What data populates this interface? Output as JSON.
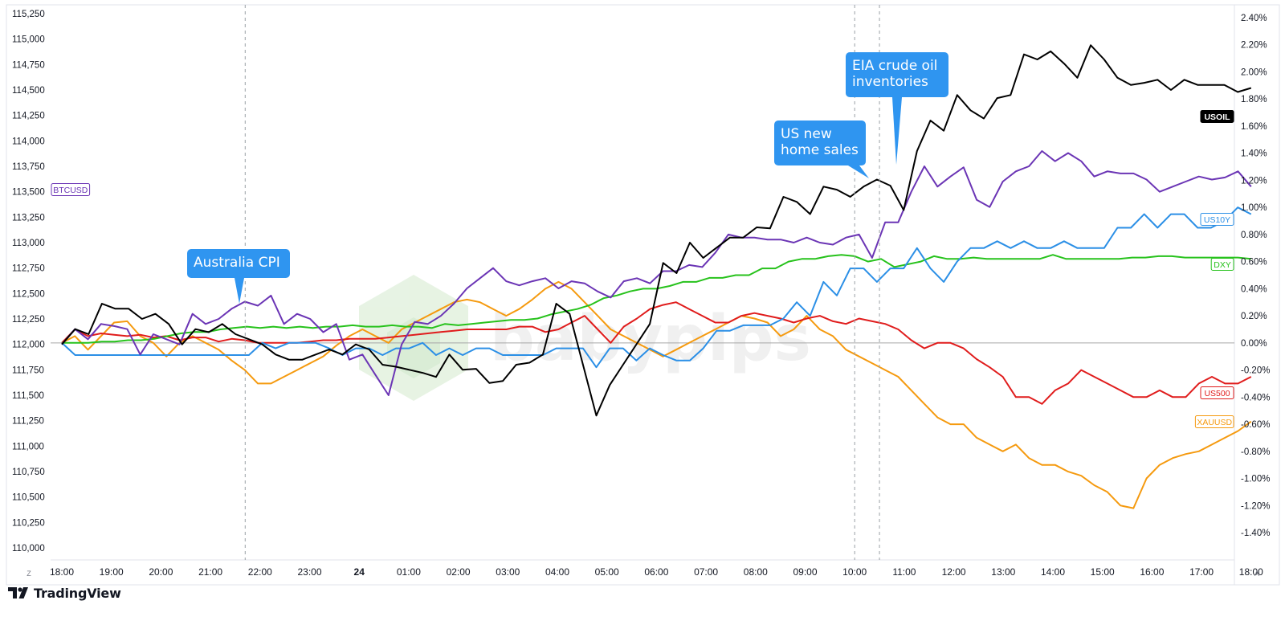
{
  "footer": {
    "brand": "TradingView"
  },
  "watermark": {
    "text": "babypips"
  },
  "corner_labels": {
    "left": "Z",
    "right": "A"
  },
  "chart_data": {
    "type": "line",
    "x_tick_labels": [
      "18:00",
      "19:00",
      "20:00",
      "21:00",
      "22:00",
      "23:00",
      "24",
      "01:00",
      "02:00",
      "03:00",
      "04:00",
      "05:00",
      "06:00",
      "07:00",
      "08:00",
      "09:00",
      "10:00",
      "11:00",
      "12:00",
      "13:00",
      "14:00",
      "15:00",
      "16:00",
      "17:00",
      "18:00"
    ],
    "left_axis": {
      "ylim": [
        110000,
        115250
      ],
      "tick_labels": [
        "115,250",
        "115,000",
        "114,750",
        "114,500",
        "114,250",
        "114,000",
        "113,750",
        "113,500",
        "113,250",
        "113,000",
        "112,750",
        "112,500",
        "112,250",
        "112,000",
        "111,750",
        "111,500",
        "111,250",
        "111,000",
        "110,750",
        "110,500",
        "110,250",
        "110,000"
      ]
    },
    "right_axis": {
      "ylim_percent": [
        -1.5,
        2.4
      ],
      "tick_labels": [
        "2.40%",
        "2.20%",
        "2.00%",
        "1.80%",
        "1.60%",
        "1.40%",
        "1.20%",
        "1.00%",
        "0.80%",
        "0.60%",
        "0.40%",
        "0.20%",
        "0.00%",
        "-0.20%",
        "-0.40%",
        "-0.60%",
        "-0.80%",
        "-1.00%",
        "-1.20%",
        "-1.40%"
      ]
    },
    "zero_line_percent": 0,
    "events": [
      {
        "label_lines": [
          "Australia CPI"
        ],
        "x_hours": 3.7
      },
      {
        "label_lines": [
          "US new",
          "home sales"
        ],
        "x_hours": 16.0
      },
      {
        "label_lines": [
          "EIA crude oil",
          "inventories"
        ],
        "x_hours": 16.5
      }
    ],
    "series": [
      {
        "name": "USOIL",
        "axis": "left",
        "color": "#000000",
        "tag_bg": "#000000",
        "tag_text": "#ffffff",
        "values": [
          112000,
          112150,
          112100,
          112400,
          112350,
          112350,
          112250,
          112300,
          112200,
          112000,
          112150,
          112120,
          112200,
          112100,
          112050,
          112000,
          111900,
          111850,
          111850,
          111900,
          111950,
          111900,
          112000,
          111950,
          111800,
          111780,
          111750,
          111720,
          111680,
          111900,
          111750,
          111760,
          111620,
          111640,
          111800,
          111820,
          111900,
          112400,
          112300,
          111800,
          111300,
          111600,
          111800,
          112000,
          112200,
          112800,
          112700,
          113000,
          112850,
          112950,
          113050,
          113050,
          113150,
          113140,
          113450,
          113400,
          113280,
          113550,
          113520,
          113450,
          113550,
          113620,
          113560,
          113320,
          113900,
          114200,
          114100,
          114450,
          114300,
          114220,
          114420,
          114450,
          114850,
          114800,
          114880,
          114760,
          114620,
          114940,
          114800,
          114620,
          114550,
          114570,
          114600,
          114500,
          114600,
          114550,
          114550,
          114550,
          114480,
          114520
        ]
      },
      {
        "name": "BTCUSD",
        "axis": "left",
        "color": "#6b35b5",
        "tag_bg": "#ffffff",
        "tag_text": "#6b35b5",
        "values": [
          112000,
          112150,
          112050,
          112200,
          112180,
          112150,
          111900,
          112100,
          112050,
          112000,
          112300,
          112200,
          112250,
          112350,
          112420,
          112380,
          112480,
          112200,
          112300,
          112250,
          112120,
          112200,
          111850,
          111900,
          111700,
          111500,
          112000,
          112220,
          112200,
          112280,
          112400,
          112550,
          112650,
          112750,
          112620,
          112580,
          112620,
          112650,
          112550,
          112620,
          112600,
          112520,
          112460,
          112620,
          112650,
          112600,
          112720,
          112720,
          112780,
          112760,
          112900,
          113080,
          113050,
          113050,
          113030,
          113030,
          113000,
          113050,
          113000,
          112980,
          113050,
          113080,
          112850,
          113200,
          113200,
          113500,
          113750,
          113550,
          113650,
          113740,
          113420,
          113350,
          113600,
          113700,
          113750,
          113900,
          113800,
          113880,
          113800,
          113650,
          113700,
          113680,
          113680,
          113620,
          113500,
          113550,
          113600,
          113650,
          113620,
          113640,
          113700,
          113550
        ]
      },
      {
        "name": "US10Y",
        "axis": "right",
        "color": "#2b8fe6",
        "tag_bg": "#ffffff",
        "tag_text": "#2b8fe6",
        "values": [
          0.0,
          -0.09,
          -0.09,
          -0.09,
          -0.09,
          -0.09,
          -0.09,
          -0.09,
          -0.09,
          -0.09,
          -0.09,
          -0.09,
          -0.09,
          -0.09,
          -0.09,
          0.0,
          -0.04,
          0.0,
          0.0,
          0.0,
          -0.04,
          -0.09,
          -0.04,
          -0.04,
          -0.09,
          -0.04,
          -0.04,
          0.0,
          -0.09,
          -0.04,
          -0.09,
          -0.04,
          -0.04,
          -0.09,
          -0.09,
          -0.09,
          -0.09,
          -0.04,
          -0.04,
          -0.04,
          -0.18,
          -0.04,
          -0.04,
          -0.13,
          -0.04,
          -0.09,
          -0.13,
          -0.13,
          -0.04,
          0.09,
          0.09,
          0.13,
          0.13,
          0.13,
          0.18,
          0.3,
          0.2,
          0.45,
          0.35,
          0.55,
          0.55,
          0.45,
          0.55,
          0.55,
          0.7,
          0.55,
          0.45,
          0.6,
          0.7,
          0.7,
          0.75,
          0.7,
          0.75,
          0.7,
          0.7,
          0.75,
          0.7,
          0.7,
          0.7,
          0.85,
          0.85,
          0.95,
          0.85,
          0.95,
          0.95,
          0.85,
          0.85,
          0.9,
          1.0,
          0.95
        ]
      },
      {
        "name": "DXY",
        "axis": "right",
        "color": "#27c21c",
        "tag_bg": "#ffffff",
        "tag_text": "#27c21c",
        "values": [
          0.0,
          0.0,
          0.0,
          0.01,
          0.01,
          0.02,
          0.02,
          0.03,
          0.05,
          0.07,
          0.08,
          0.08,
          0.1,
          0.11,
          0.12,
          0.11,
          0.12,
          0.11,
          0.12,
          0.11,
          0.12,
          0.12,
          0.13,
          0.12,
          0.12,
          0.13,
          0.12,
          0.12,
          0.11,
          0.14,
          0.13,
          0.14,
          0.15,
          0.16,
          0.17,
          0.17,
          0.18,
          0.21,
          0.23,
          0.25,
          0.28,
          0.33,
          0.35,
          0.38,
          0.4,
          0.4,
          0.42,
          0.45,
          0.45,
          0.48,
          0.48,
          0.5,
          0.5,
          0.55,
          0.55,
          0.6,
          0.62,
          0.62,
          0.64,
          0.65,
          0.64,
          0.6,
          0.62,
          0.56,
          0.58,
          0.6,
          0.64,
          0.62,
          0.62,
          0.63,
          0.62,
          0.62,
          0.62,
          0.62,
          0.62,
          0.65,
          0.62,
          0.62,
          0.62,
          0.62,
          0.62,
          0.63,
          0.63,
          0.64,
          0.64,
          0.63,
          0.63,
          0.63,
          0.63,
          0.63,
          0.62
        ]
      },
      {
        "name": "US500",
        "axis": "right",
        "color": "#e01c1c",
        "tag_bg": "#ffffff",
        "tag_text": "#e01c1c",
        "values": [
          0.0,
          0.1,
          0.05,
          0.07,
          0.06,
          0.05,
          0.06,
          0.04,
          0.05,
          0.02,
          0.04,
          0.04,
          0.01,
          0.03,
          0.02,
          0.0,
          0.0,
          0.0,
          0.0,
          0.01,
          0.02,
          0.02,
          0.03,
          0.03,
          0.03,
          0.04,
          0.05,
          0.06,
          0.07,
          0.08,
          0.09,
          0.1,
          0.1,
          0.1,
          0.1,
          0.12,
          0.12,
          0.08,
          0.1,
          0.15,
          0.2,
          0.1,
          0.0,
          0.12,
          0.18,
          0.25,
          0.28,
          0.3,
          0.25,
          0.2,
          0.15,
          0.15,
          0.2,
          0.22,
          0.2,
          0.18,
          0.15,
          0.18,
          0.2,
          0.16,
          0.14,
          0.18,
          0.16,
          0.14,
          0.1,
          0.02,
          -0.04,
          0.0,
          0.0,
          -0.04,
          -0.12,
          -0.18,
          -0.25,
          -0.4,
          -0.4,
          -0.45,
          -0.35,
          -0.3,
          -0.2,
          -0.25,
          -0.3,
          -0.35,
          -0.4,
          -0.4,
          -0.35,
          -0.4,
          -0.4,
          -0.3,
          -0.25,
          -0.3,
          -0.3,
          -0.25
        ]
      },
      {
        "name": "XAUUSD",
        "axis": "right",
        "color": "#f59a0f",
        "tag_bg": "#ffffff",
        "tag_text": "#f59a0f",
        "values": [
          0.0,
          0.05,
          -0.05,
          0.05,
          0.15,
          0.16,
          0.05,
          0.0,
          -0.1,
          0.0,
          0.05,
          0.0,
          -0.05,
          -0.13,
          -0.2,
          -0.3,
          -0.3,
          -0.25,
          -0.2,
          -0.15,
          -0.1,
          -0.02,
          0.05,
          0.1,
          0.05,
          0.0,
          0.1,
          0.15,
          0.2,
          0.25,
          0.3,
          0.32,
          0.3,
          0.25,
          0.2,
          0.25,
          0.32,
          0.4,
          0.45,
          0.4,
          0.3,
          0.2,
          0.1,
          0.05,
          0.0,
          -0.05,
          -0.1,
          -0.05,
          0.0,
          0.05,
          0.1,
          0.15,
          0.2,
          0.18,
          0.15,
          0.05,
          0.1,
          0.2,
          0.1,
          0.05,
          -0.05,
          -0.1,
          -0.15,
          -0.2,
          -0.25,
          -0.35,
          -0.45,
          -0.55,
          -0.6,
          -0.6,
          -0.7,
          -0.75,
          -0.8,
          -0.75,
          -0.85,
          -0.9,
          -0.9,
          -0.95,
          -0.98,
          -1.05,
          -1.1,
          -1.2,
          -1.22,
          -1.0,
          -0.9,
          -0.85,
          -0.82,
          -0.8,
          -0.75,
          -0.7,
          -0.65,
          -0.58
        ]
      }
    ]
  }
}
